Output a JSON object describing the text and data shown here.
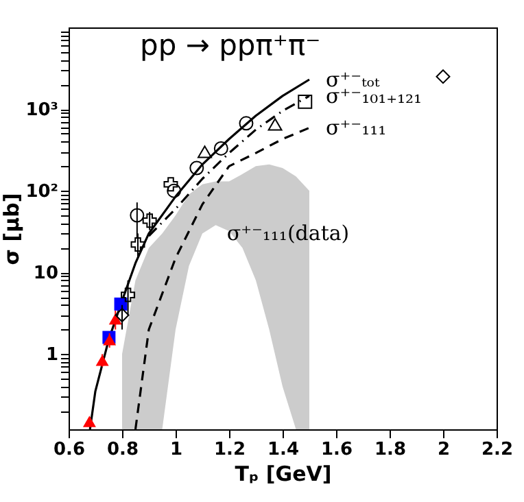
{
  "chart_data": {
    "type": "scatter",
    "title": "pp → ppπ⁺π⁻",
    "xlabel": "Tₚ [GeV]",
    "ylabel": "σ [μb]",
    "log": "y",
    "grid": false,
    "xlim": [
      0.6,
      2.2
    ],
    "xticks": [
      0.6,
      0.8,
      1,
      1.2,
      1.4,
      1.6,
      1.8,
      2,
      2.2
    ],
    "ylim": [
      0.12,
      10000
    ],
    "yticks": [
      {
        "value": 0.2,
        "label": null
      },
      {
        "value": 0.3,
        "label": null
      },
      {
        "value": 0.4,
        "label": null
      },
      {
        "value": 0.5,
        "label": null
      },
      {
        "value": 0.6,
        "label": null
      },
      {
        "value": 0.7,
        "label": null
      },
      {
        "value": 0.8,
        "label": null
      },
      {
        "value": 0.9,
        "label": null
      },
      1,
      {
        "value": 2,
        "label": null
      },
      {
        "value": 3,
        "label": null
      },
      {
        "value": 4,
        "label": null
      },
      {
        "value": 5,
        "label": null
      },
      {
        "value": 6,
        "label": null
      },
      {
        "value": 7,
        "label": null
      },
      {
        "value": 8,
        "label": null
      },
      {
        "value": 9,
        "label": null
      },
      10,
      {
        "value": 20,
        "label": null
      },
      {
        "value": 30,
        "label": null
      },
      {
        "value": 40,
        "label": null
      },
      {
        "value": 50,
        "label": null
      },
      {
        "value": 60,
        "label": null
      },
      {
        "value": 70,
        "label": null
      },
      {
        "value": 80,
        "label": null
      },
      {
        "value": 90,
        "label": null
      },
      {
        "value": 100,
        "label": "10²"
      },
      {
        "value": 200,
        "label": null
      },
      {
        "value": 300,
        "label": null
      },
      {
        "value": 400,
        "label": null
      },
      {
        "value": 500,
        "label": null
      },
      {
        "value": 600,
        "label": null
      },
      {
        "value": 700,
        "label": null
      },
      {
        "value": 800,
        "label": null
      },
      {
        "value": 900,
        "label": null
      },
      {
        "value": 1000,
        "label": "10³"
      },
      {
        "value": 2000,
        "label": null
      },
      {
        "value": 3000,
        "label": null
      },
      {
        "value": 4000,
        "label": null
      },
      {
        "value": 5000,
        "label": null
      },
      {
        "value": 6000,
        "label": null
      },
      {
        "value": 7000,
        "label": null
      },
      {
        "value": 8000,
        "label": null
      },
      {
        "value": 9000,
        "label": null
      }
    ],
    "annotations": [
      "σ⁺⁻₁₁₁(data)"
    ],
    "series": [
      {
        "type": "area",
        "color": "#cccccc",
        "x": [
          0.8,
          0.85,
          0.9,
          0.95,
          1.0,
          1.05,
          1.1,
          1.15,
          1.2,
          1.25,
          1.3,
          1.35,
          1.4,
          1.45,
          1.5
        ],
        "values": [
          null,
          null,
          null,
          null,
          null,
          null,
          null,
          null,
          null,
          null,
          null,
          null,
          null,
          null,
          null
        ],
        "upper": [
          1,
          8,
          20,
          30,
          50,
          90,
          120,
          130,
          130,
          160,
          200,
          210,
          190,
          150,
          100
        ],
        "lower": [
          0.12,
          0.12,
          0.12,
          0.12,
          2,
          12,
          30,
          38,
          32,
          20,
          8,
          2,
          0.4,
          0.12,
          0.12
        ]
      },
      {
        "type": "line",
        "name": "σ⁺⁻ₜₒₜ",
        "color": "#000000",
        "line_style": "solid",
        "x": [
          0.68,
          0.7,
          0.75,
          0.8,
          0.85,
          0.9,
          1.0,
          1.1,
          1.2,
          1.3,
          1.4,
          1.5
        ],
        "values": [
          0.12,
          0.35,
          1.5,
          4.5,
          13,
          30,
          85,
          210,
          430,
          830,
          1450,
          2300
        ]
      },
      {
        "type": "line",
        "name": "σ⁺⁻₁₀₁₊₁₂₁",
        "color": "#000000",
        "line_style": "dashdot",
        "x": [
          0.9,
          1.0,
          1.1,
          1.2,
          1.3,
          1.4,
          1.5
        ],
        "values": [
          28,
          60,
          140,
          290,
          560,
          950,
          1450
        ]
      },
      {
        "type": "line",
        "name": "σ⁺⁻₁₁₁",
        "color": "#000000",
        "line_style": "dashed",
        "x": [
          0.85,
          0.9,
          1.0,
          1.1,
          1.2,
          1.3,
          1.4,
          1.5
        ],
        "values": [
          0.12,
          2,
          15,
          68,
          200,
          290,
          430,
          590
        ]
      },
      {
        "color": "#0000ff",
        "marker": "square",
        "x": [
          0.751,
          0.795
        ],
        "values": [
          1.6,
          4.1
        ]
      },
      {
        "color": "#ff0000",
        "marker": "triangle",
        "x": [
          0.678,
          0.726,
          0.753,
          0.775
        ],
        "values": [
          0.15,
          0.84,
          1.5,
          2.7
        ],
        "errors": [
          null,
          [
            0.7,
            1.0
          ],
          [
            1.2,
            1.8
          ],
          [
            2.0,
            3.4
          ]
        ]
      },
      {
        "color": "#000000",
        "marker": "circle",
        "x": [
          0.856,
          0.994,
          1.079,
          1.17,
          1.264
        ],
        "values": [
          50,
          100,
          190,
          330,
          670
        ],
        "errors": [
          [
            26,
            72
          ],
          null,
          null,
          null,
          null
        ]
      },
      {
        "color": "#000000",
        "marker": "cross",
        "x": [
          0.822,
          0.859,
          0.903,
          0.982
        ],
        "values": [
          5.3,
          22,
          43,
          120
        ],
        "errors": [
          [
            3,
            8
          ],
          [
            15,
            30
          ],
          [
            33,
            55
          ],
          null
        ]
      },
      {
        "color": "#000000",
        "marker": "triangle",
        "x": [
          1.109,
          1.372
        ],
        "values": [
          300,
          650
        ]
      },
      {
        "color": "#000000",
        "marker": "diamond",
        "x": [
          0.8,
          2.0
        ],
        "values": [
          3.0,
          2500
        ],
        "errors": [
          [
            2,
            4
          ],
          null
        ]
      },
      {
        "color": "#000000",
        "marker": "square",
        "x": [
          1.484
        ],
        "values": [
          1230
        ]
      }
    ]
  }
}
